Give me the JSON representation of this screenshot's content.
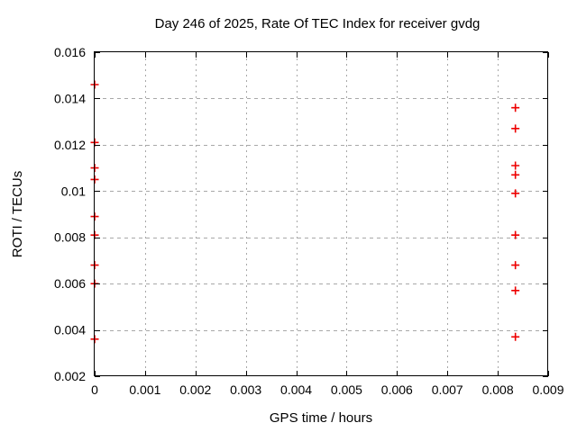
{
  "chart_data": {
    "type": "scatter",
    "title": "Day 246 of 2025, Rate Of TEC Index for receiver gvdg",
    "xlabel": "GPS time / hours",
    "ylabel": "ROTI / TECUs",
    "xlim": [
      0,
      0.009
    ],
    "ylim": [
      0.002,
      0.016
    ],
    "grid": true,
    "legend_position": "none",
    "background_color": "#ffffff",
    "axis_color": "#000000",
    "grid_color": "#a8a8a8",
    "marker": "plus",
    "marker_color": "#ee0000",
    "x_ticks": [
      {
        "value": 0,
        "label": "0"
      },
      {
        "value": 0.001,
        "label": "0.001"
      },
      {
        "value": 0.002,
        "label": "0.002"
      },
      {
        "value": 0.003,
        "label": "0.003"
      },
      {
        "value": 0.004,
        "label": "0.004"
      },
      {
        "value": 0.005,
        "label": "0.005"
      },
      {
        "value": 0.006,
        "label": "0.006"
      },
      {
        "value": 0.007,
        "label": "0.007"
      },
      {
        "value": 0.008,
        "label": "0.008"
      },
      {
        "value": 0.009,
        "label": "0.009"
      }
    ],
    "y_ticks": [
      {
        "value": 0.002,
        "label": "0.002"
      },
      {
        "value": 0.004,
        "label": "0.004"
      },
      {
        "value": 0.006,
        "label": "0.006"
      },
      {
        "value": 0.008,
        "label": "0.008"
      },
      {
        "value": 0.01,
        "label": "0.01"
      },
      {
        "value": 0.012,
        "label": "0.012"
      },
      {
        "value": 0.014,
        "label": "0.014"
      },
      {
        "value": 0.016,
        "label": "0.016"
      }
    ],
    "series": [
      {
        "name": "ROTI",
        "points": [
          [
            0,
            0.0146
          ],
          [
            0,
            0.0121
          ],
          [
            0,
            0.011
          ],
          [
            0,
            0.0105
          ],
          [
            0,
            0.0089
          ],
          [
            0,
            0.0081
          ],
          [
            0,
            0.0068
          ],
          [
            0,
            0.006
          ],
          [
            0,
            0.0036
          ],
          [
            0.00835,
            0.0136
          ],
          [
            0.00835,
            0.0127
          ],
          [
            0.00835,
            0.0111
          ],
          [
            0.00835,
            0.0107
          ],
          [
            0.00835,
            0.0099
          ],
          [
            0.00835,
            0.0081
          ],
          [
            0.00835,
            0.0068
          ],
          [
            0.00835,
            0.0057
          ],
          [
            0.00835,
            0.0037
          ]
        ]
      }
    ]
  }
}
